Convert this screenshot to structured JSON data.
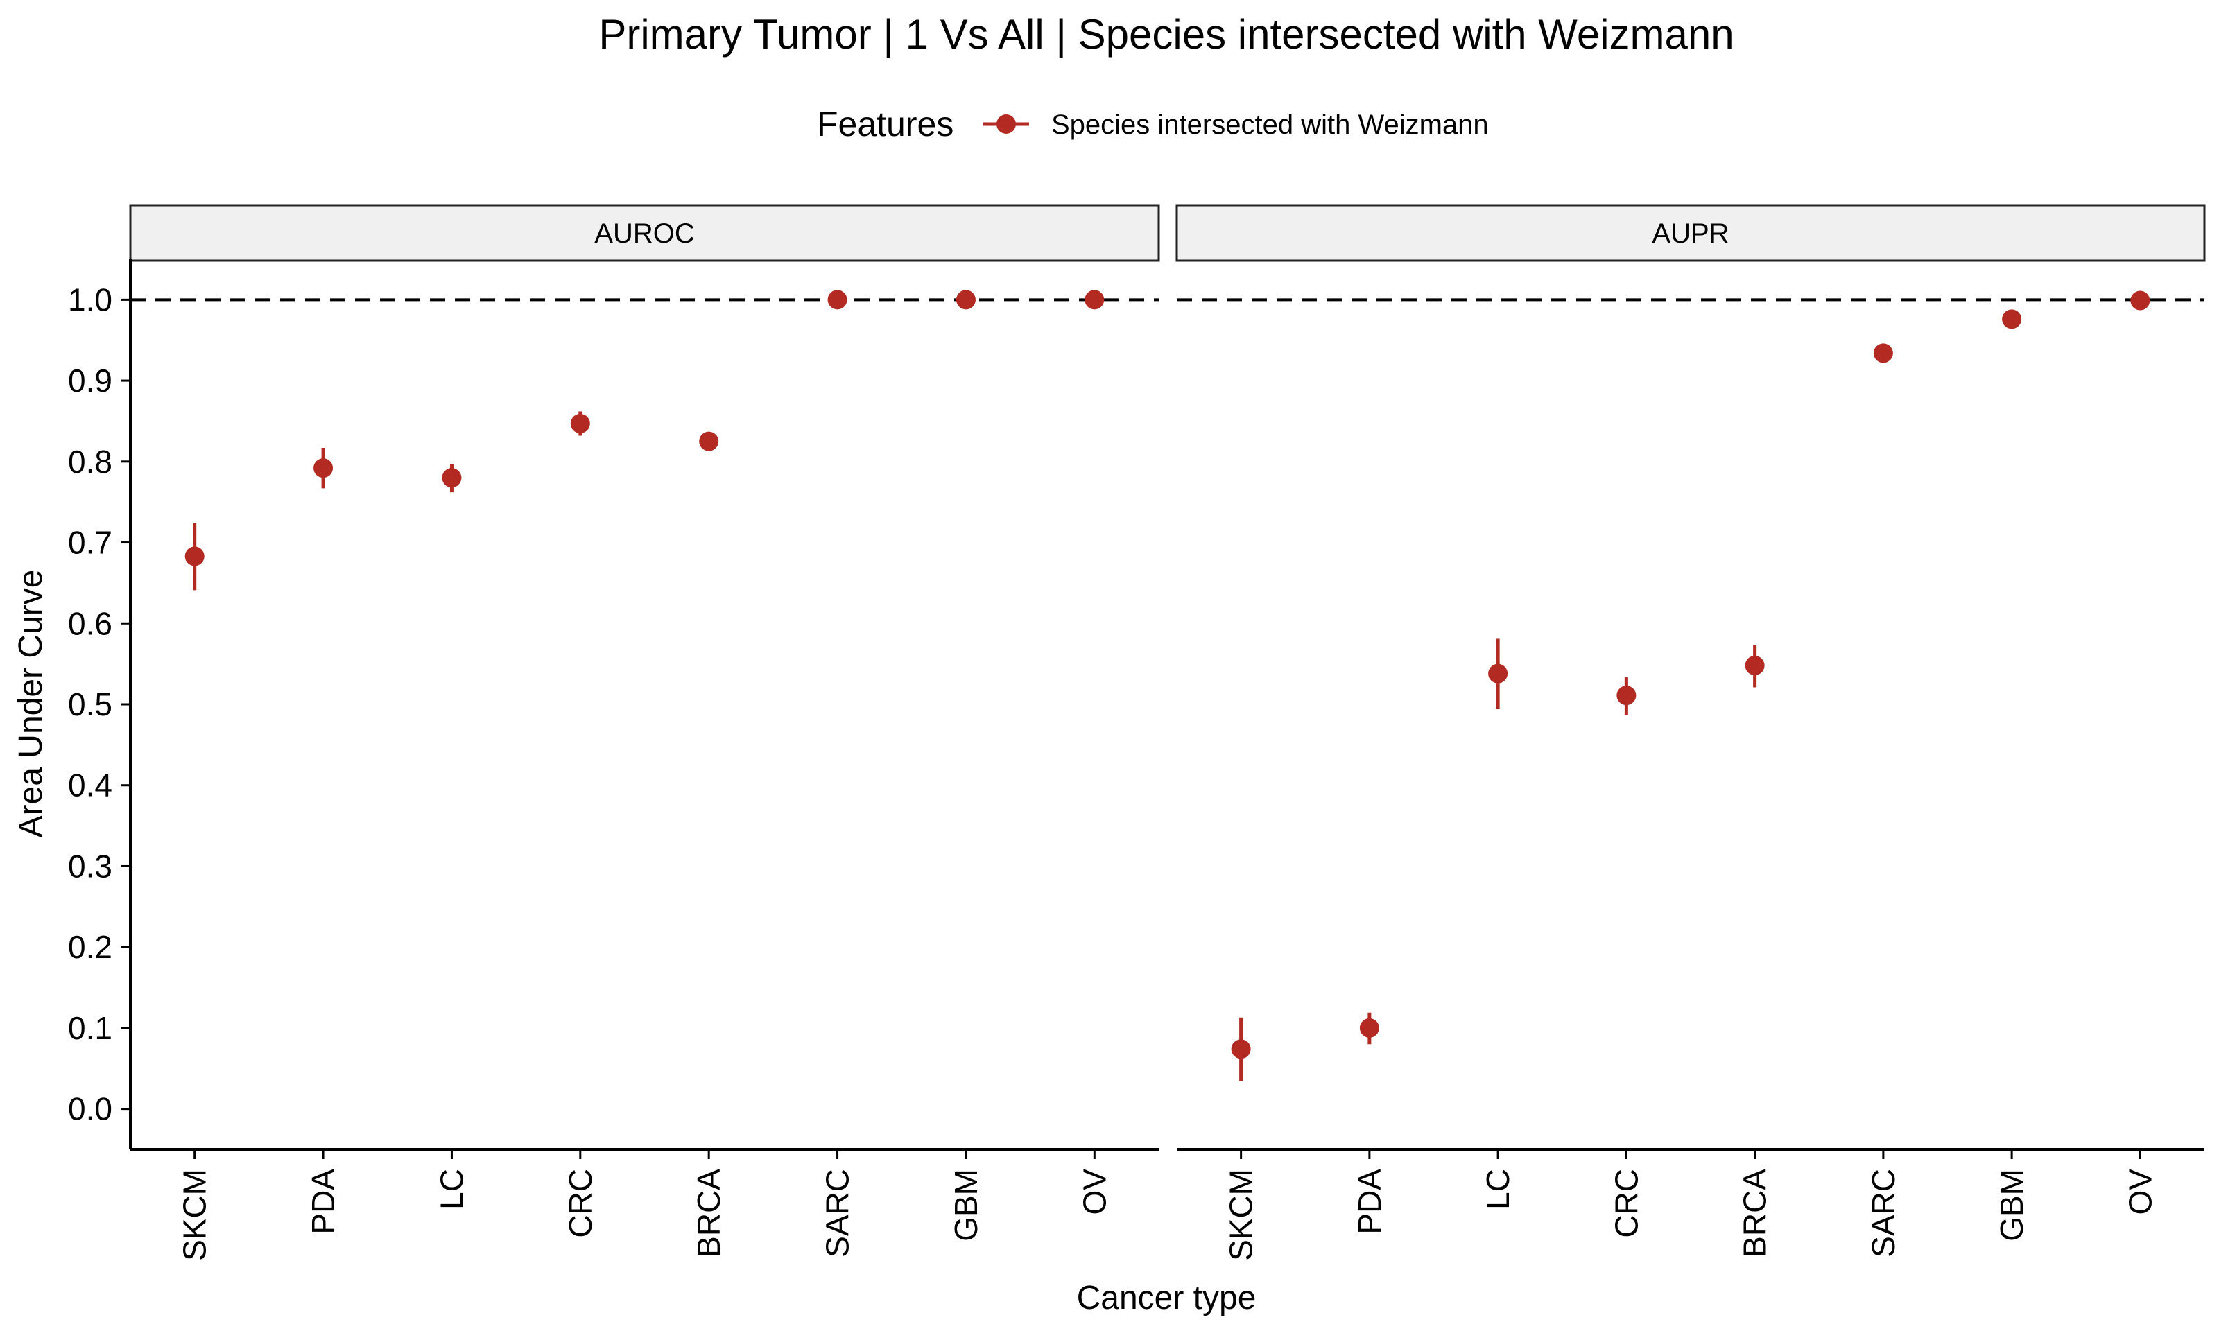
{
  "chart_data": {
    "type": "scatter",
    "title": "Primary Tumor | 1 Vs All | Species intersected with Weizmann",
    "xlabel": "Cancer type",
    "ylabel": "Area Under Curve",
    "ylim": [
      -0.05,
      1.05
    ],
    "yticks": [
      0.0,
      0.1,
      0.2,
      0.3,
      0.4,
      0.5,
      0.6,
      0.7,
      0.8,
      0.9,
      1.0
    ],
    "ytick_labels": [
      "0.0",
      "0.1",
      "0.2",
      "0.3",
      "0.4",
      "0.5",
      "0.6",
      "0.7",
      "0.8",
      "0.9",
      "1.0"
    ],
    "categories": [
      "SKCM",
      "PDA",
      "LC",
      "CRC",
      "BRCA",
      "SARC",
      "GBM",
      "OV"
    ],
    "reference_line": 1.0,
    "legend": {
      "title": "Features",
      "position": "top",
      "entries": [
        "Species intersected with Weizmann"
      ]
    },
    "series_color": "#B22A22",
    "grid": false,
    "panels": [
      {
        "label": "AUROC",
        "series": [
          {
            "name": "Species intersected with Weizmann",
            "values": [
              0.683,
              0.792,
              0.78,
              0.847,
              0.825,
              1.0,
              1.0,
              1.0
            ],
            "lower": [
              0.641,
              0.767,
              0.762,
              0.832,
              0.818,
              1.0,
              1.0,
              1.0
            ],
            "upper": [
              0.724,
              0.817,
              0.797,
              0.862,
              0.832,
              1.0,
              1.0,
              1.0
            ]
          }
        ]
      },
      {
        "label": "AUPR",
        "series": [
          {
            "name": "Species intersected with Weizmann",
            "values": [
              0.074,
              0.1,
              0.538,
              0.511,
              0.548,
              0.934,
              0.976,
              0.999
            ],
            "lower": [
              0.034,
              0.08,
              0.494,
              0.487,
              0.521,
              0.934,
              0.976,
              0.999
            ],
            "upper": [
              0.113,
              0.119,
              0.581,
              0.534,
              0.573,
              0.934,
              0.976,
              0.999
            ]
          }
        ]
      }
    ]
  }
}
